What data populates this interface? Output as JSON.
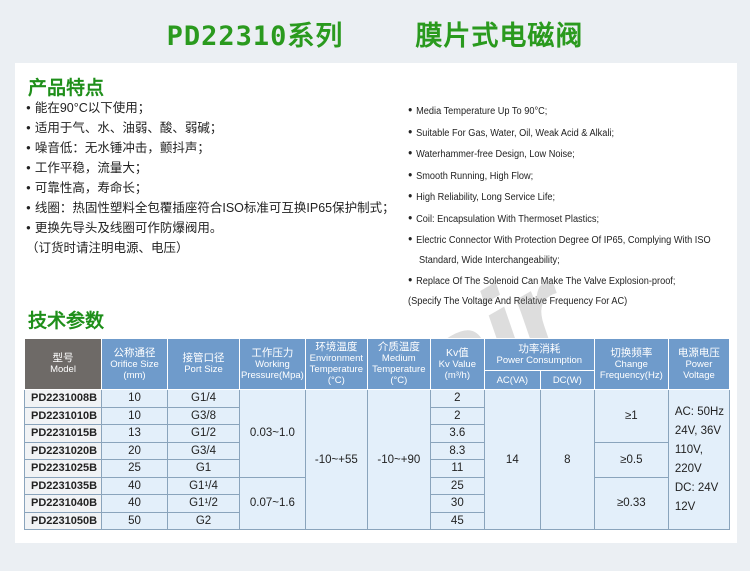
{
  "title": {
    "series": "PD22310系列",
    "name": "膜片式电磁阀"
  },
  "watermark": "CCLair",
  "features": {
    "heading": "产品特点",
    "cn": [
      "能在90°C以下使用；",
      "适用于气、水、油弱、酸、弱碱；",
      "噪音低：无水锤冲击，颤抖声；",
      "工作平稳，流量大；",
      "可靠性高，寿命长；",
      "线圈：热固性塑料全包覆插座符合ISO标准可互换IP65保护制式；",
      "更换先导头及线圈可作防爆阀用。"
    ],
    "cn_note": "（订货时请注明电源、电压）",
    "en": [
      "Media Temperature Up To 90°C;",
      "Suitable For Gas, Water, Oil, Weak Acid & Alkali;",
      "Waterhammer-free Design, Low Noise;",
      "Smooth Running, High Flow;",
      "High Reliability, Long Service Life;",
      "Coil: Encapsulation With Thermoset Plastics;",
      "Electric Connector With Protection Degree Of IP65, Complying With ISO",
      "Replace Of The Solenoid Can Make The Valve Explosion-proof;"
    ],
    "en_cont": "Standard, Wide Interchangeability;",
    "en_note": "(Specify The Voltage And Relative Frequency For AC)"
  },
  "specs": {
    "heading": "技术参数",
    "headers": {
      "model": [
        "型号",
        "Model"
      ],
      "orifice": [
        "公称通径",
        "Orifice Size",
        "(mm)"
      ],
      "port": [
        "接管口径",
        "Port Size"
      ],
      "pressure": [
        "工作压力",
        "Working",
        "Pressure(Mpa)"
      ],
      "env": [
        "环境温度",
        "Environment",
        "Temperature",
        "(°C)"
      ],
      "medium": [
        "介质温度",
        "Medium",
        "Temperature",
        "(°C)"
      ],
      "kv": [
        "Kv值",
        "Kv Value",
        "(m³/h)"
      ],
      "power": [
        "功率消耗",
        "Power Consumption"
      ],
      "ac": "AC(VA)",
      "dc": "DC(W)",
      "freq": [
        "切换频率",
        "Change",
        "Frequency(Hz)"
      ],
      "voltage": [
        "电源电压",
        "Power Voltage"
      ]
    },
    "rows": [
      {
        "model": "PD2231008B",
        "orifice": "10",
        "port": "G1/4",
        "kv": "2"
      },
      {
        "model": "PD2231010B",
        "orifice": "10",
        "port": "G3/8",
        "kv": "2"
      },
      {
        "model": "PD2231015B",
        "orifice": "13",
        "port": "G1/2",
        "kv": "3.6"
      },
      {
        "model": "PD2231020B",
        "orifice": "20",
        "port": "G3/4",
        "kv": "8.3"
      },
      {
        "model": "PD2231025B",
        "orifice": "25",
        "port": "G1",
        "kv": "11"
      },
      {
        "model": "PD2231035B",
        "orifice": "40",
        "port": "G1¹/4",
        "kv": "25"
      },
      {
        "model": "PD2231040B",
        "orifice": "40",
        "port": "G1¹/2",
        "kv": "30"
      },
      {
        "model": "PD2231050B",
        "orifice": "50",
        "port": "G2",
        "kv": "45"
      }
    ],
    "pressure": [
      "0.03~1.0",
      "0.07~1.6"
    ],
    "env_temp": "-10~+55",
    "medium_temp": "-10~+90",
    "ac": "14",
    "dc": "8",
    "freq": [
      "≥1",
      "≥0.5",
      "≥0.33"
    ],
    "voltage": [
      "AC: 50Hz",
      "24V, 36V",
      "110V, 220V",
      "DC: 24V",
      "12V"
    ]
  }
}
